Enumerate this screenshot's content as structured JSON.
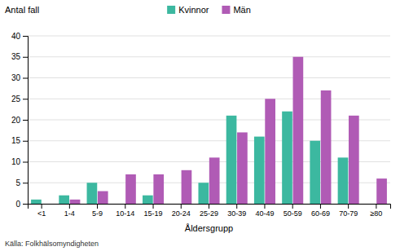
{
  "chart_data": {
    "type": "bar",
    "categories": [
      "<1",
      "1-4",
      "5-9",
      "10-14",
      "15-19",
      "20-24",
      "25-29",
      "30-39",
      "40-49",
      "50-59",
      "60-69",
      "70-79",
      "≥80"
    ],
    "series": [
      {
        "name": "Kvinnor",
        "color": "#3cb8a0",
        "values": [
          1,
          2,
          5,
          0,
          2,
          0,
          5,
          21,
          16,
          22,
          15,
          11,
          0
        ]
      },
      {
        "name": "Män",
        "color": "#b05bb5",
        "values": [
          0,
          1,
          3,
          7,
          7,
          8,
          11,
          17,
          25,
          35,
          27,
          21,
          6
        ]
      }
    ],
    "xlabel": "Åldersgrupp",
    "ylabel": "Antal fall",
    "ylim": [
      0,
      40
    ],
    "yticks": [
      0,
      5,
      10,
      15,
      20,
      25,
      30,
      35,
      40
    ],
    "grid": true,
    "legend": "top",
    "annotations": [
      "Källa: Folkhälsomyndigheten"
    ]
  }
}
